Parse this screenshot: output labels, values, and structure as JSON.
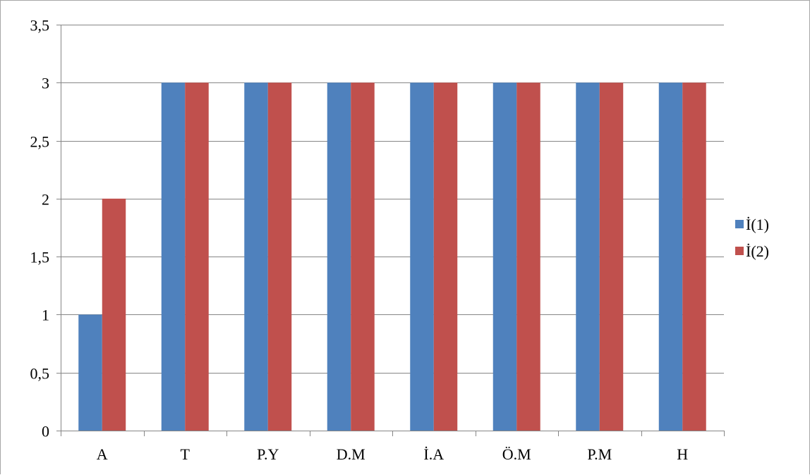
{
  "chart_data": {
    "type": "bar",
    "title": "",
    "xlabel": "",
    "ylabel": "",
    "categories": [
      "A",
      "T",
      "P.Y",
      "D.M",
      "İ.A",
      "Ö.M",
      "P.M",
      "H"
    ],
    "series": [
      {
        "name": "İ(1)",
        "color": "#4f81bd",
        "values": [
          1,
          3,
          3,
          3,
          3,
          3,
          3,
          3
        ]
      },
      {
        "name": "İ(2)",
        "color": "#c0504d",
        "values": [
          2,
          3,
          3,
          3,
          3,
          3,
          3,
          3
        ]
      }
    ],
    "ylim": [
      0,
      3.5
    ],
    "yticks": [
      "0",
      "0,5",
      "1",
      "1,5",
      "2",
      "2,5",
      "3",
      "3,5"
    ],
    "grid": true,
    "legend_position": "right"
  }
}
